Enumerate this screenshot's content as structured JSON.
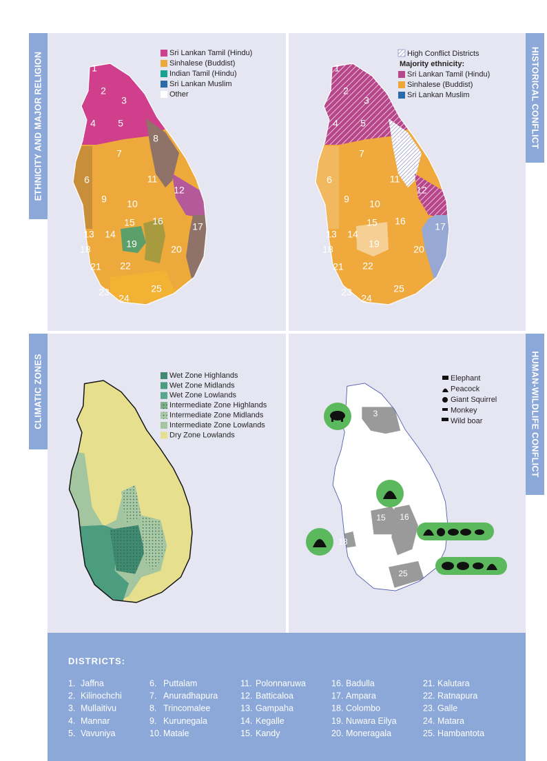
{
  "panels": [
    {
      "title": "ETHNICITY AND MAJOR RELIGION",
      "legend": [
        {
          "label": "Sri Lankan Tamil (Hindu)",
          "color": "#cf3f8b"
        },
        {
          "label": "Sinhalese (Buddist)",
          "color": "#eea837"
        },
        {
          "label": "Indian Tamil (Hindu)",
          "color": "#17a38f"
        },
        {
          "label": "Sri Lankan Muslim",
          "color": "#2a6aab"
        },
        {
          "label": "Other",
          "color": "#ffffff"
        }
      ]
    },
    {
      "title": "HISTORICAL CONFLICT",
      "hatch_label": "High Conflict Districts",
      "legend_heading": "Majority ethnicity:",
      "legend": [
        {
          "label": "Sri Lankan Tamil (Hindu)",
          "color": "#b8468a"
        },
        {
          "label": "Sinhalese (Buddist)",
          "color": "#eea837"
        },
        {
          "label": "Sri Lankan Muslim",
          "color": "#2a6aab"
        }
      ]
    },
    {
      "title": "CLIMATIC ZONES",
      "legend": [
        {
          "label": "Wet Zone Highlands",
          "color": "#3f8a70"
        },
        {
          "label": "Wet Zone Midlands",
          "color": "#4c9c80"
        },
        {
          "label": "Wet Zone Lowlands",
          "color": "#5aa68d"
        },
        {
          "label": "Intermediate Zone Highlands",
          "color": "#7fae86",
          "pattern": "dots"
        },
        {
          "label": "Intermediate Zone Midlands",
          "color": "#a9c9a4",
          "pattern": "dots"
        },
        {
          "label": "Intermediate Zone Lowlands",
          "color": "#a3c59f"
        },
        {
          "label": "Dry Zone Lowlands",
          "color": "#e6df8e"
        }
      ]
    },
    {
      "title": "HUMAN-WILDLIFE CONFLICT",
      "legend": [
        {
          "label": "Elephant"
        },
        {
          "label": "Peacock"
        },
        {
          "label": "Giant Squirrel"
        },
        {
          "label": "Monkey"
        },
        {
          "label": "Wild boar"
        }
      ],
      "district_labels": [
        3,
        15,
        16,
        18,
        25
      ]
    }
  ],
  "district_numbers": [
    1,
    2,
    3,
    4,
    5,
    6,
    7,
    8,
    9,
    10,
    11,
    12,
    13,
    14,
    15,
    16,
    17,
    18,
    19,
    20,
    21,
    22,
    23,
    24,
    25
  ],
  "districts": {
    "heading": "DISTRICTS:",
    "items": [
      {
        "number": "1.",
        "name": "Jaffna"
      },
      {
        "number": "2.",
        "name": "Kilinochchi"
      },
      {
        "number": "3.",
        "name": "Mullaitivu"
      },
      {
        "number": "4.",
        "name": "Mannar"
      },
      {
        "number": "5.",
        "name": "Vavuniya"
      },
      {
        "number": "6.",
        "name": "Puttalam"
      },
      {
        "number": "7.",
        "name": "Anuradhapura"
      },
      {
        "number": "8.",
        "name": "Trincomalee"
      },
      {
        "number": "9.",
        "name": "Kurunegala"
      },
      {
        "number": "10.",
        "name": "Matale"
      },
      {
        "number": "11.",
        "name": "Polonnaruwa"
      },
      {
        "number": "12.",
        "name": "Batticaloa"
      },
      {
        "number": "13.",
        "name": "Gampaha"
      },
      {
        "number": "14.",
        "name": "Kegalle"
      },
      {
        "number": "15.",
        "name": "Kandy"
      },
      {
        "number": "16.",
        "name": "Badulla"
      },
      {
        "number": "17.",
        "name": "Ampara"
      },
      {
        "number": "18.",
        "name": "Colombo"
      },
      {
        "number": "19.",
        "name": "Nuwara Eilya"
      },
      {
        "number": "20.",
        "name": "Moneragala"
      },
      {
        "number": "21.",
        "name": "Kalutara"
      },
      {
        "number": "22.",
        "name": "Ratnapura"
      },
      {
        "number": "23.",
        "name": "Galle"
      },
      {
        "number": "24.",
        "name": "Matara"
      },
      {
        "number": "25.",
        "name": "Hambantota"
      }
    ]
  }
}
